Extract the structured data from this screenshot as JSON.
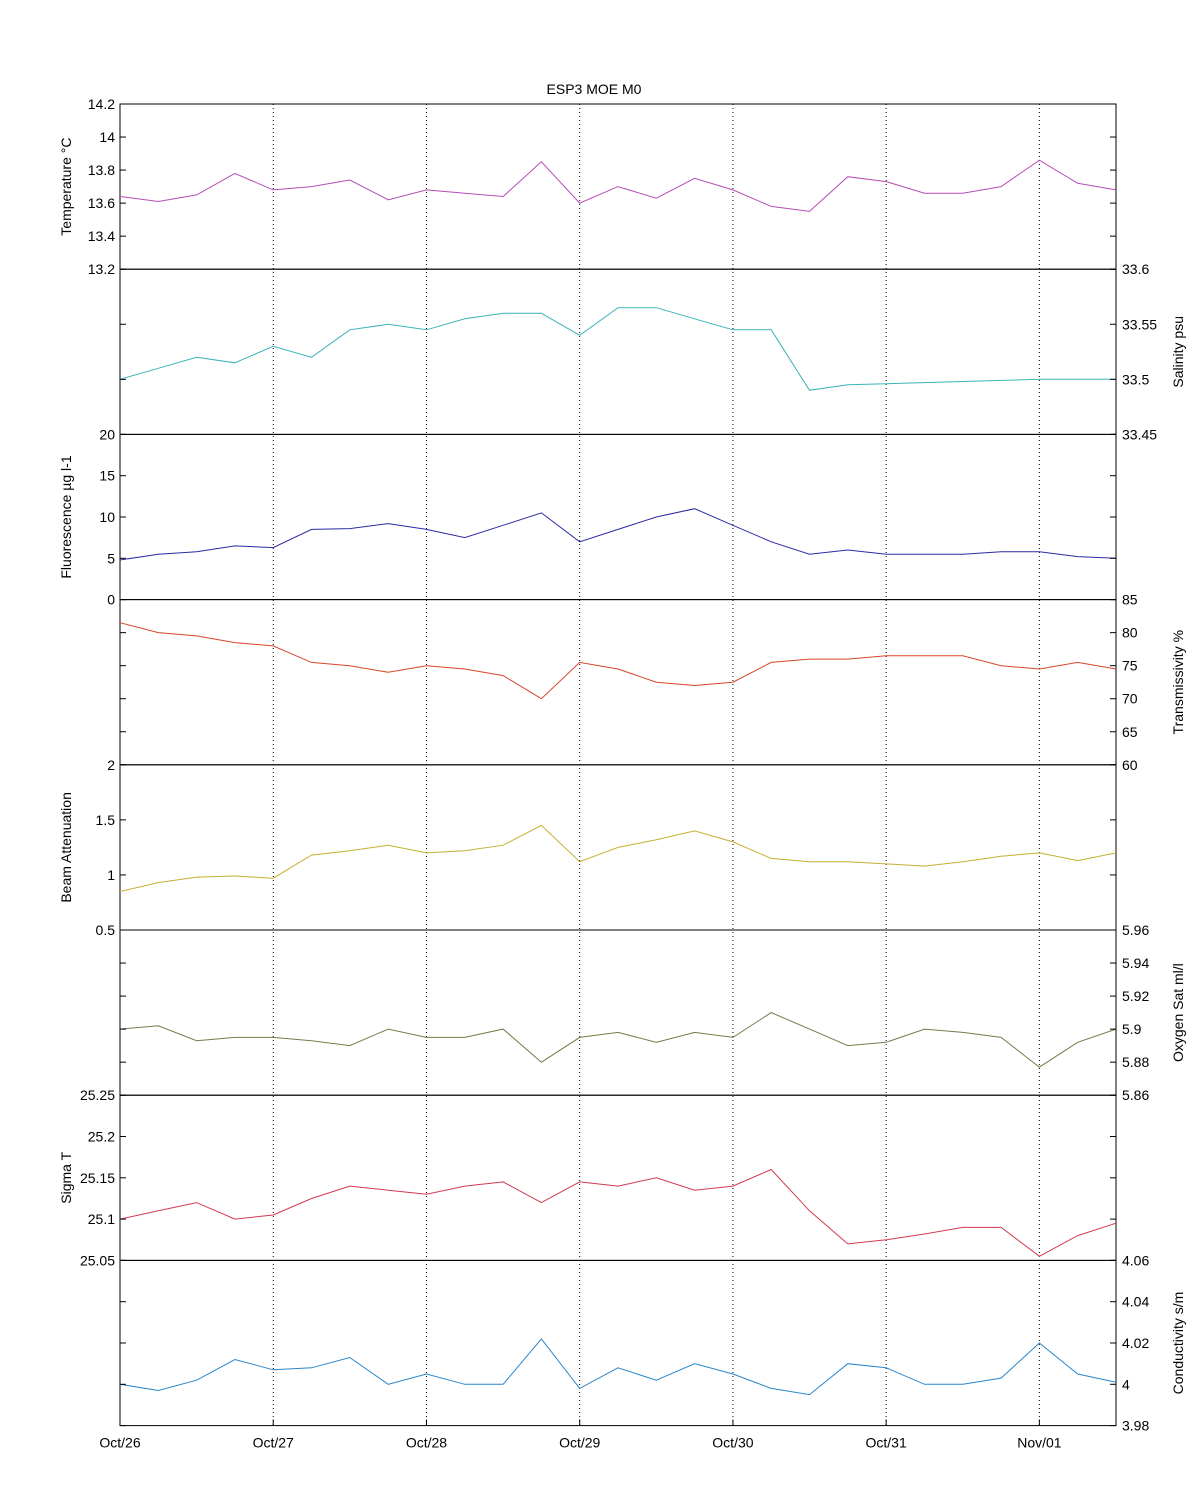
{
  "chart_data": {
    "type": "line",
    "title": "ESP3 MOE   M0",
    "x_type": "date",
    "xlim": [
      "2006-10-26T00:00",
      "2006-11-01T12:00"
    ],
    "x_ticks": [
      {
        "value": "2006-10-26T00:00",
        "label": "Oct/26"
      },
      {
        "value": "2006-10-27T00:00",
        "label": "Oct/27"
      },
      {
        "value": "2006-10-28T00:00",
        "label": "Oct/28"
      },
      {
        "value": "2006-10-29T00:00",
        "label": "Oct/29"
      },
      {
        "value": "2006-10-30T00:00",
        "label": "Oct/30"
      },
      {
        "value": "2006-10-31T00:00",
        "label": "Oct/31"
      },
      {
        "value": "2006-11-01T00:00",
        "label": "Nov/01"
      }
    ],
    "grid": "vertical dotted at day ticks",
    "x": [
      "2006-10-26T00:00",
      "2006-10-26T06:00",
      "2006-10-26T12:00",
      "2006-10-26T18:00",
      "2006-10-27T00:00",
      "2006-10-27T06:00",
      "2006-10-27T12:00",
      "2006-10-27T18:00",
      "2006-10-28T00:00",
      "2006-10-28T06:00",
      "2006-10-28T12:00",
      "2006-10-28T18:00",
      "2006-10-29T00:00",
      "2006-10-29T06:00",
      "2006-10-29T12:00",
      "2006-10-29T18:00",
      "2006-10-30T00:00",
      "2006-10-30T06:00",
      "2006-10-30T12:00",
      "2006-10-30T18:00",
      "2006-10-31T00:00",
      "2006-10-31T06:00",
      "2006-10-31T12:00",
      "2006-10-31T18:00",
      "2006-11-01T00:00",
      "2006-11-01T06:00",
      "2006-11-01T12:00"
    ],
    "panels": [
      {
        "name": "Temperature °C",
        "ylabel": "Temperature °C",
        "axis_side": "left",
        "ylim": [
          13.2,
          14.2
        ],
        "ticks": [
          {
            "v": 13.2,
            "l": "13.2"
          },
          {
            "v": 13.4,
            "l": "13.4"
          },
          {
            "v": 13.6,
            "l": "13.6"
          },
          {
            "v": 13.8,
            "l": "13.8"
          },
          {
            "v": 14.0,
            "l": "14"
          },
          {
            "v": 14.2,
            "l": "14.2"
          }
        ],
        "color": "#b64cb6",
        "values": [
          13.64,
          13.61,
          13.65,
          13.78,
          13.68,
          13.7,
          13.74,
          13.62,
          13.68,
          13.66,
          13.64,
          13.85,
          13.6,
          13.7,
          13.63,
          13.75,
          13.68,
          13.58,
          13.55,
          13.76,
          13.73,
          13.66,
          13.66,
          13.7,
          13.86,
          13.72,
          13.68
        ]
      },
      {
        "name": "Salinity psu",
        "ylabel": "Salinity psu",
        "axis_side": "right",
        "ylim": [
          33.45,
          33.6
        ],
        "ticks": [
          {
            "v": 33.45,
            "l": "33.45"
          },
          {
            "v": 33.5,
            "l": "33.5"
          },
          {
            "v": 33.55,
            "l": "33.55"
          },
          {
            "v": 33.6,
            "l": "33.6"
          }
        ],
        "color": "#3ab3b6",
        "values": [
          33.5,
          33.51,
          33.52,
          33.515,
          33.53,
          33.52,
          33.545,
          33.55,
          33.545,
          33.555,
          33.56,
          33.56,
          33.54,
          33.565,
          33.565,
          33.555,
          33.545,
          33.545,
          33.49,
          33.495,
          33.496,
          33.497,
          33.498,
          33.499,
          33.5,
          33.5,
          33.5
        ]
      },
      {
        "name": "Fluorescence µg l-1",
        "ylabel": "Fluorescence µg l-1",
        "axis_side": "left",
        "ylim": [
          0,
          20
        ],
        "ticks": [
          {
            "v": 0,
            "l": "0"
          },
          {
            "v": 5,
            "l": "5"
          },
          {
            "v": 10,
            "l": "10"
          },
          {
            "v": 15,
            "l": "15"
          },
          {
            "v": 20,
            "l": "20"
          }
        ],
        "color": "#2b2ba6",
        "values": [
          4.8,
          5.5,
          5.8,
          6.5,
          6.3,
          8.5,
          8.6,
          9.2,
          8.5,
          7.5,
          9.0,
          10.5,
          7.0,
          8.5,
          10.0,
          11.0,
          9.0,
          7.0,
          5.5,
          6.0,
          5.5,
          5.5,
          5.5,
          5.8,
          5.8,
          5.2,
          5.0
        ]
      },
      {
        "name": "Transmissivity %",
        "ylabel": "Transmissivity %",
        "axis_side": "right",
        "ylim": [
          60,
          85
        ],
        "ticks": [
          {
            "v": 60,
            "l": "60"
          },
          {
            "v": 65,
            "l": "65"
          },
          {
            "v": 70,
            "l": "70"
          },
          {
            "v": 75,
            "l": "75"
          },
          {
            "v": 80,
            "l": "80"
          },
          {
            "v": 85,
            "l": "85"
          }
        ],
        "color": "#d9462a",
        "values": [
          81.5,
          80.0,
          79.5,
          78.5,
          78.0,
          75.5,
          75.0,
          74.0,
          75.0,
          74.5,
          73.5,
          70.0,
          75.5,
          74.5,
          72.5,
          72.0,
          72.5,
          75.5,
          76.0,
          76.0,
          76.5,
          76.5,
          76.5,
          75.0,
          74.5,
          75.5,
          74.5
        ]
      },
      {
        "name": "Beam Attenuation",
        "ylabel": "Beam Attenuation",
        "axis_side": "left",
        "ylim": [
          0.5,
          2.0
        ],
        "ticks": [
          {
            "v": 0.5,
            "l": "0.5"
          },
          {
            "v": 1.0,
            "l": "1"
          },
          {
            "v": 1.5,
            "l": "1.5"
          },
          {
            "v": 2.0,
            "l": "2"
          }
        ],
        "color": "#c6b032",
        "values": [
          0.85,
          0.93,
          0.98,
          0.99,
          0.97,
          1.18,
          1.22,
          1.27,
          1.2,
          1.22,
          1.27,
          1.45,
          1.12,
          1.25,
          1.32,
          1.4,
          1.3,
          1.15,
          1.12,
          1.12,
          1.1,
          1.08,
          1.12,
          1.17,
          1.2,
          1.13,
          1.2
        ]
      },
      {
        "name": "Oxygen Sat ml/l",
        "ylabel": "Oxygen Sat ml/l",
        "axis_side": "right",
        "ylim": [
          5.86,
          5.96
        ],
        "ticks": [
          {
            "v": 5.86,
            "l": "5.86"
          },
          {
            "v": 5.88,
            "l": "5.88"
          },
          {
            "v": 5.9,
            "l": "5.9"
          },
          {
            "v": 5.92,
            "l": "5.92"
          },
          {
            "v": 5.94,
            "l": "5.94"
          },
          {
            "v": 5.96,
            "l": "5.96"
          }
        ],
        "color": "#787a4a",
        "values": [
          5.9,
          5.902,
          5.893,
          5.895,
          5.895,
          5.893,
          5.89,
          5.9,
          5.895,
          5.895,
          5.9,
          5.88,
          5.895,
          5.898,
          5.892,
          5.898,
          5.895,
          5.91,
          5.9,
          5.89,
          5.892,
          5.9,
          5.898,
          5.895,
          5.877,
          5.892,
          5.9
        ]
      },
      {
        "name": "Sigma T",
        "ylabel": "Sigma T",
        "axis_side": "left",
        "ylim": [
          25.05,
          25.25
        ],
        "ticks": [
          {
            "v": 25.05,
            "l": "25.05"
          },
          {
            "v": 25.1,
            "l": "25.1"
          },
          {
            "v": 25.15,
            "l": "25.15"
          },
          {
            "v": 25.2,
            "l": "25.2"
          },
          {
            "v": 25.25,
            "l": "25.25"
          }
        ],
        "color": "#d23a4e",
        "values": [
          25.1,
          25.11,
          25.12,
          25.1,
          25.105,
          25.125,
          25.14,
          25.135,
          25.13,
          25.14,
          25.145,
          25.12,
          25.145,
          25.14,
          25.15,
          25.135,
          25.14,
          25.16,
          25.11,
          25.07,
          25.075,
          25.082,
          25.09,
          25.09,
          25.055,
          25.08,
          25.095
        ]
      },
      {
        "name": "Conductivity s/m",
        "ylabel": "Conductivity s/m",
        "axis_side": "right",
        "ylim": [
          3.98,
          4.06
        ],
        "ticks": [
          {
            "v": 3.98,
            "l": "3.98"
          },
          {
            "v": 4.0,
            "l": "4"
          },
          {
            "v": 4.02,
            "l": "4.02"
          },
          {
            "v": 4.04,
            "l": "4.04"
          },
          {
            "v": 4.06,
            "l": "4.06"
          }
        ],
        "color": "#2a86cb",
        "values": [
          4.0,
          3.997,
          4.002,
          4.012,
          4.007,
          4.008,
          4.013,
          4.0,
          4.005,
          4.0,
          4.0,
          4.022,
          3.998,
          4.008,
          4.002,
          4.01,
          4.005,
          3.998,
          3.995,
          4.01,
          4.008,
          4.0,
          4.0,
          4.003,
          4.02,
          4.005,
          4.001
        ]
      }
    ]
  }
}
